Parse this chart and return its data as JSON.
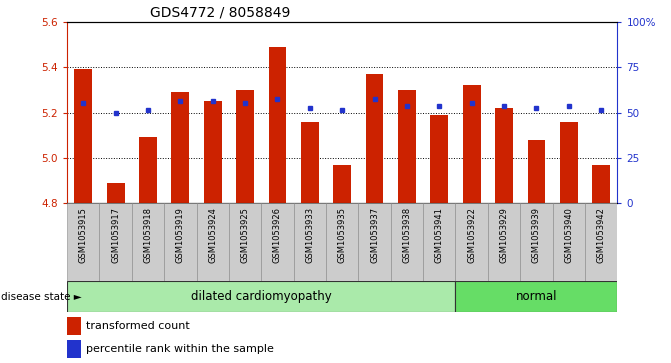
{
  "title": "GDS4772 / 8058849",
  "samples": [
    "GSM1053915",
    "GSM1053917",
    "GSM1053918",
    "GSM1053919",
    "GSM1053924",
    "GSM1053925",
    "GSM1053926",
    "GSM1053933",
    "GSM1053935",
    "GSM1053937",
    "GSM1053938",
    "GSM1053941",
    "GSM1053922",
    "GSM1053929",
    "GSM1053939",
    "GSM1053940",
    "GSM1053942"
  ],
  "bar_values": [
    5.39,
    4.89,
    5.09,
    5.29,
    5.25,
    5.3,
    5.49,
    5.16,
    4.97,
    5.37,
    5.3,
    5.19,
    5.32,
    5.22,
    5.08,
    5.16,
    4.97
  ],
  "dot_values": [
    5.24,
    5.2,
    5.21,
    5.25,
    5.25,
    5.24,
    5.26,
    5.22,
    5.21,
    5.26,
    5.23,
    5.23,
    5.24,
    5.23,
    5.22,
    5.23,
    5.21
  ],
  "group_labels": [
    "dilated cardiomyopathy",
    "normal"
  ],
  "group_counts": [
    12,
    5
  ],
  "bar_color": "#CC2200",
  "dot_color": "#2233CC",
  "ylim_left": [
    4.8,
    5.6
  ],
  "ylim_right": [
    0,
    100
  ],
  "yticks_left": [
    4.8,
    5.0,
    5.2,
    5.4,
    5.6
  ],
  "yticks_right": [
    0,
    25,
    50,
    75,
    100
  ],
  "ytick_labels_right": [
    "0",
    "25",
    "50",
    "75",
    "100%"
  ],
  "grid_values": [
    5.0,
    5.2,
    5.4
  ],
  "disease_state_label": "disease state",
  "legend_bar_label": "transformed count",
  "legend_dot_label": "percentile rank within the sample",
  "bar_width": 0.55,
  "background_color": "#ffffff",
  "label_area_color": "#cccccc",
  "dilated_bg": "#aaeaaa",
  "normal_bg": "#66dd66"
}
